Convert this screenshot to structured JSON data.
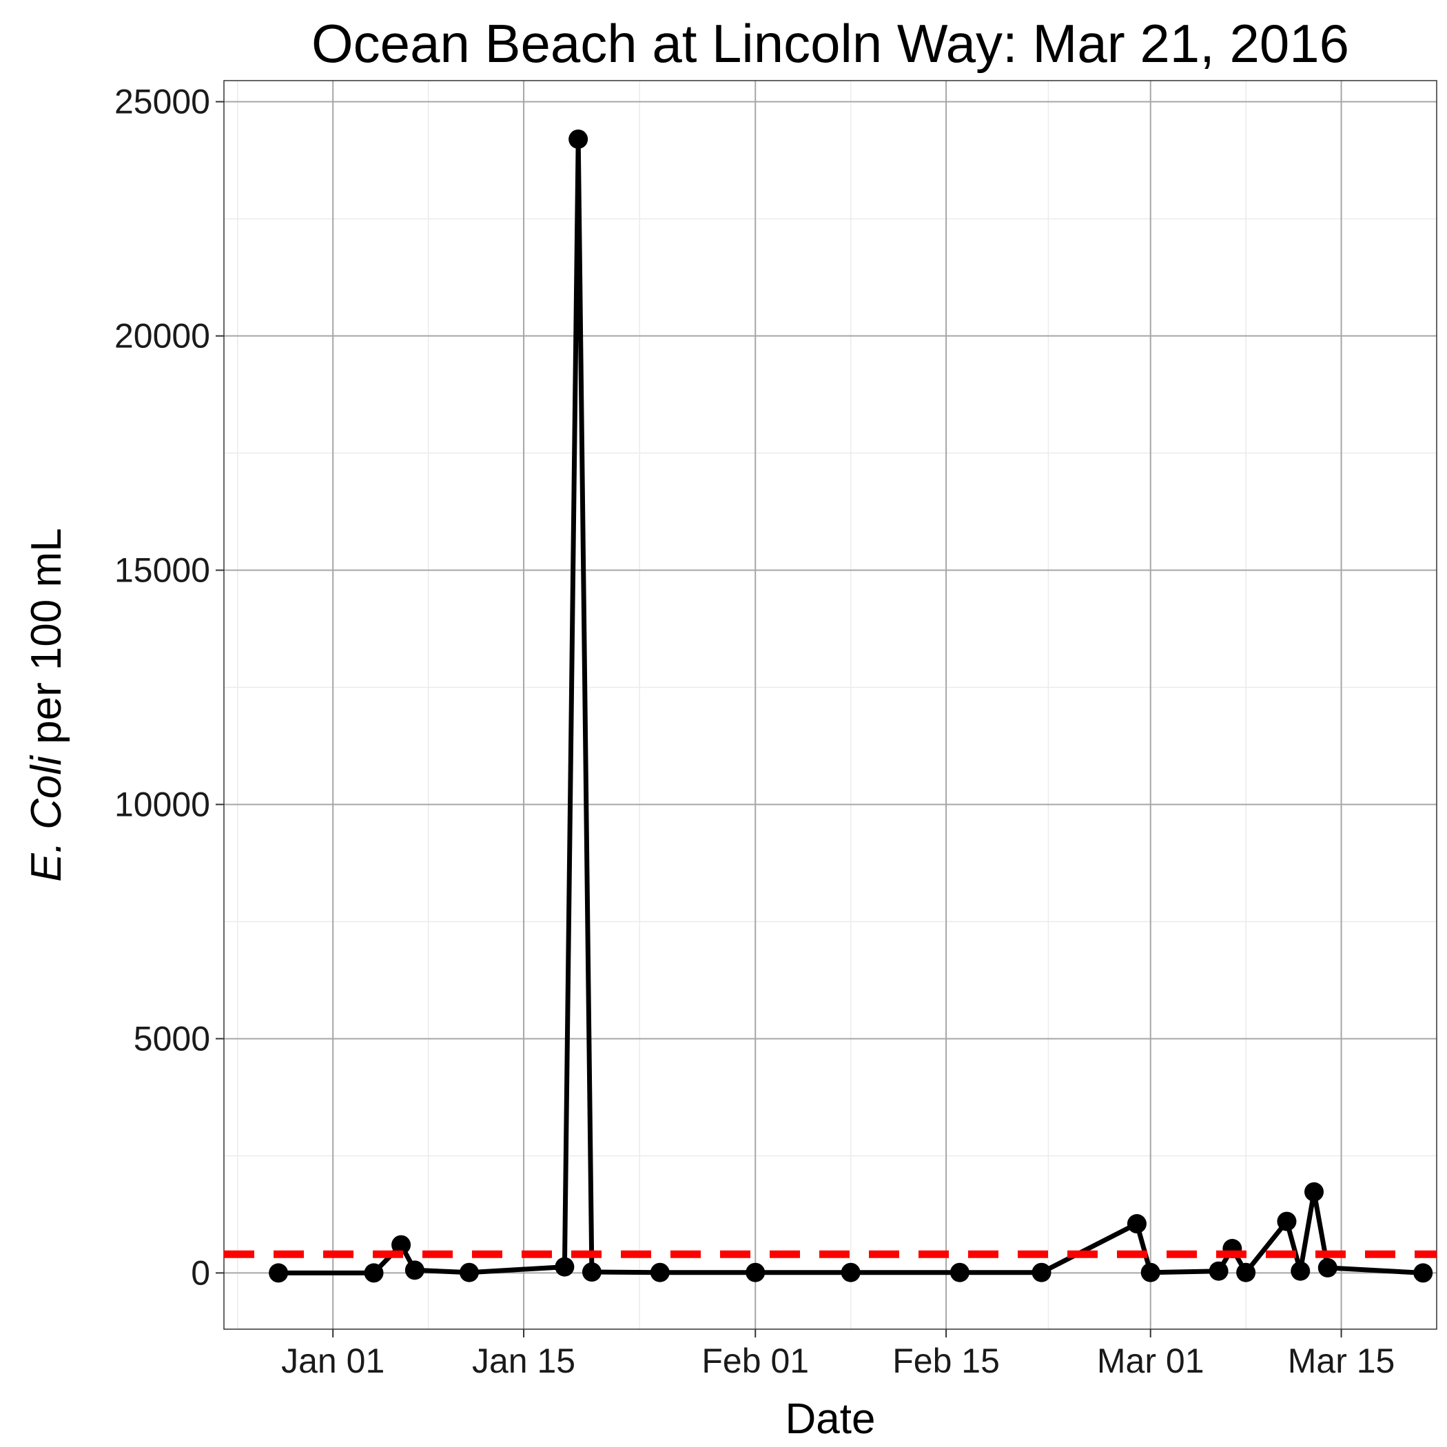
{
  "chart_data": {
    "type": "line",
    "title": "Ocean Beach at Lincoln Way: Mar 21, 2016",
    "xlabel": "Date",
    "ylabel_italic": "E. Coli",
    "ylabel_rest": " per 100 mL",
    "x_ticks": [
      {
        "date": "2016-01-01",
        "label": "Jan 01"
      },
      {
        "date": "2016-01-15",
        "label": "Jan 15"
      },
      {
        "date": "2016-02-01",
        "label": "Feb 01"
      },
      {
        "date": "2016-02-15",
        "label": "Feb 15"
      },
      {
        "date": "2016-03-01",
        "label": "Mar 01"
      },
      {
        "date": "2016-03-15",
        "label": "Mar 15"
      }
    ],
    "x_range": [
      "2015-12-24",
      "2016-03-22"
    ],
    "y_ticks": [
      0,
      5000,
      10000,
      15000,
      20000,
      25000
    ],
    "ylim": [
      -1200,
      25450
    ],
    "grid": true,
    "series": [
      {
        "color": "#000000",
        "points": [
          {
            "x": "2015-12-28",
            "y": 0
          },
          {
            "x": "2016-01-04",
            "y": 0
          },
          {
            "x": "2016-01-06",
            "y": 600
          },
          {
            "x": "2016-01-07",
            "y": 60
          },
          {
            "x": "2016-01-11",
            "y": 10
          },
          {
            "x": "2016-01-18",
            "y": 130
          },
          {
            "x": "2016-01-19",
            "y": 24200
          },
          {
            "x": "2016-01-20",
            "y": 20
          },
          {
            "x": "2016-01-25",
            "y": 10
          },
          {
            "x": "2016-02-01",
            "y": 10
          },
          {
            "x": "2016-02-08",
            "y": 10
          },
          {
            "x": "2016-02-16",
            "y": 10
          },
          {
            "x": "2016-02-22",
            "y": 10
          },
          {
            "x": "2016-02-29",
            "y": 1050
          },
          {
            "x": "2016-03-01",
            "y": 10
          },
          {
            "x": "2016-03-06",
            "y": 40
          },
          {
            "x": "2016-03-07",
            "y": 520
          },
          {
            "x": "2016-03-08",
            "y": 10
          },
          {
            "x": "2016-03-11",
            "y": 1100
          },
          {
            "x": "2016-03-12",
            "y": 40
          },
          {
            "x": "2016-03-13",
            "y": 1730
          },
          {
            "x": "2016-03-14",
            "y": 110
          },
          {
            "x": "2016-03-21",
            "y": 0
          }
        ]
      }
    ],
    "reference_line": {
      "y": 400,
      "color": "#ff0000",
      "style": "dashed"
    }
  }
}
